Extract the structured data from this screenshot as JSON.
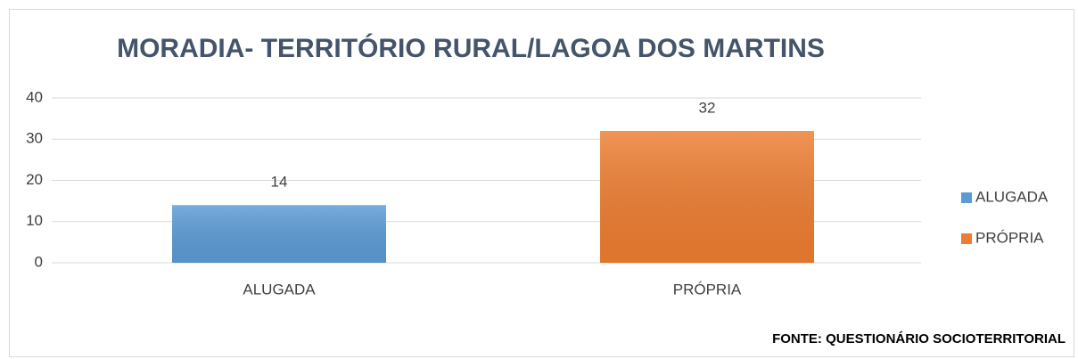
{
  "chart_data": {
    "type": "bar",
    "title": "MORADIA- TERRITÓRIO RURAL/LAGOA DOS MARTINS",
    "categories": [
      "ALUGADA",
      "PRÓPRIA"
    ],
    "values": [
      14,
      32
    ],
    "colors": [
      "#5b9bd5",
      "#ed7d31"
    ],
    "ylim": [
      0,
      40
    ],
    "yticks": [
      0,
      10,
      20,
      30,
      40
    ],
    "grid": true,
    "legend": "right",
    "annotation": "FONTE: QUESTIONÁRIO SOCIOTERRITORIAL"
  }
}
